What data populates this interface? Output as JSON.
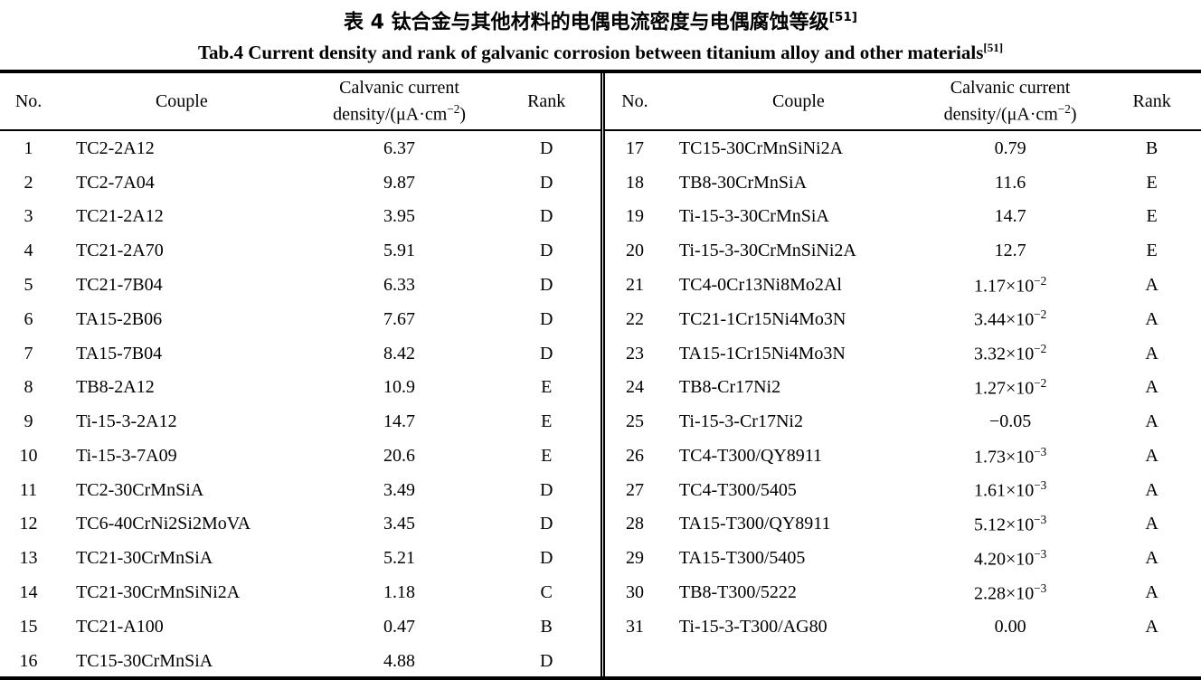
{
  "title": {
    "zh": "表 4  钛合金与其他材料的电偶电流密度与电偶腐蚀等级",
    "zh_ref": "[51]",
    "en": "Tab.4 Current density and rank of galvanic corrosion between titanium alloy and other materials",
    "en_ref": "[51]"
  },
  "header": {
    "no": "No.",
    "couple": "Couple",
    "density_line1": "Calvanic current",
    "density_line2_pre": "density/(μA·cm",
    "density_sup": "−2",
    "density_line2_post": ")",
    "rank": "Rank"
  },
  "left_rows": [
    {
      "no": "1",
      "couple": "TC2-2A12",
      "density": "6.37",
      "rank": "D"
    },
    {
      "no": "2",
      "couple": "TC2-7A04",
      "density": "9.87",
      "rank": "D"
    },
    {
      "no": "3",
      "couple": "TC21-2A12",
      "density": "3.95",
      "rank": "D"
    },
    {
      "no": "4",
      "couple": "TC21-2A70",
      "density": "5.91",
      "rank": "D"
    },
    {
      "no": "5",
      "couple": "TC21-7B04",
      "density": "6.33",
      "rank": "D"
    },
    {
      "no": "6",
      "couple": "TA15-2B06",
      "density": "7.67",
      "rank": "D"
    },
    {
      "no": "7",
      "couple": "TA15-7B04",
      "density": "8.42",
      "rank": "D"
    },
    {
      "no": "8",
      "couple": "TB8-2A12",
      "density": "10.9",
      "rank": "E"
    },
    {
      "no": "9",
      "couple": "Ti-15-3-2A12",
      "density": "14.7",
      "rank": "E"
    },
    {
      "no": "10",
      "couple": "Ti-15-3-7A09",
      "density": "20.6",
      "rank": "E"
    },
    {
      "no": "11",
      "couple": "TC2-30CrMnSiA",
      "density": "3.49",
      "rank": "D"
    },
    {
      "no": "12",
      "couple": "TC6-40CrNi2Si2MoVA",
      "density": "3.45",
      "rank": "D"
    },
    {
      "no": "13",
      "couple": "TC21-30CrMnSiA",
      "density": "5.21",
      "rank": "D"
    },
    {
      "no": "14",
      "couple": "TC21-30CrMnSiNi2A",
      "density": "1.18",
      "rank": "C"
    },
    {
      "no": "15",
      "couple": "TC21-A100",
      "density": "0.47",
      "rank": "B"
    },
    {
      "no": "16",
      "couple": "TC15-30CrMnSiA",
      "density": "4.88",
      "rank": "D"
    }
  ],
  "right_rows": [
    {
      "no": "17",
      "couple": "TC15-30CrMnSiNi2A",
      "density": "0.79",
      "rank": "B"
    },
    {
      "no": "18",
      "couple": "TB8-30CrMnSiA",
      "density": "11.6",
      "rank": "E"
    },
    {
      "no": "19",
      "couple": "Ti-15-3-30CrMnSiA",
      "density": "14.7",
      "rank": "E"
    },
    {
      "no": "20",
      "couple": "Ti-15-3-30CrMnSiNi2A",
      "density": "12.7",
      "rank": "E"
    },
    {
      "no": "21",
      "couple": "TC4-0Cr13Ni8Mo2Al",
      "density": "1.17×10",
      "exp": "−2",
      "rank": "A"
    },
    {
      "no": "22",
      "couple": "TC21-1Cr15Ni4Mo3N",
      "density": "3.44×10",
      "exp": "−2",
      "rank": "A"
    },
    {
      "no": "23",
      "couple": "TA15-1Cr15Ni4Mo3N",
      "density": "3.32×10",
      "exp": "−2",
      "rank": "A"
    },
    {
      "no": "24",
      "couple": "TB8-Cr17Ni2",
      "density": "1.27×10",
      "exp": "−2",
      "rank": "A"
    },
    {
      "no": "25",
      "couple": "Ti-15-3-Cr17Ni2",
      "density": "−0.05",
      "rank": "A"
    },
    {
      "no": "26",
      "couple": "TC4-T300/QY8911",
      "density": "1.73×10",
      "exp": "−3",
      "rank": "A"
    },
    {
      "no": "27",
      "couple": "TC4-T300/5405",
      "density": "1.61×10",
      "exp": "−3",
      "rank": "A"
    },
    {
      "no": "28",
      "couple": "TA15-T300/QY8911",
      "density": "5.12×10",
      "exp": "−3",
      "rank": "A"
    },
    {
      "no": "29",
      "couple": "TA15-T300/5405",
      "density": "4.20×10",
      "exp": "−3",
      "rank": "A"
    },
    {
      "no": "30",
      "couple": "TB8-T300/5222",
      "density": "2.28×10",
      "exp": "−3",
      "rank": "A"
    },
    {
      "no": "31",
      "couple": "Ti-15-3-T300/AG80",
      "density": "0.00",
      "rank": "A"
    }
  ]
}
